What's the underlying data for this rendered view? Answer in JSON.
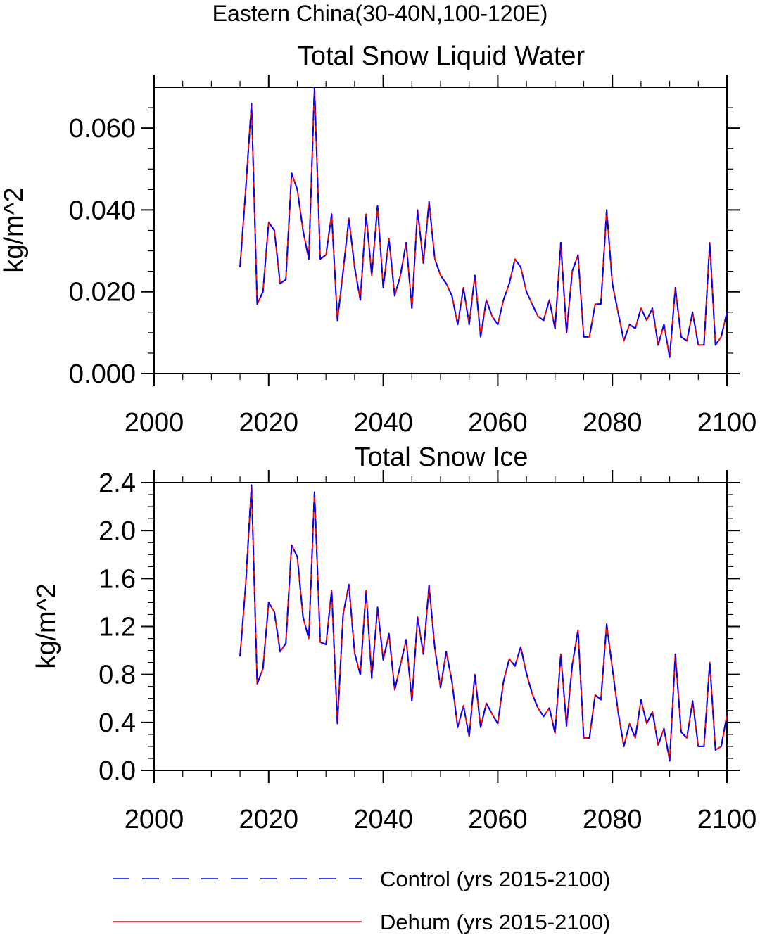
{
  "supertitle": "Eastern China(30-40N,100-120E)",
  "chart_data": [
    {
      "type": "line",
      "title": "Total Snow Liquid Water",
      "ylabel": "kg/m^2",
      "xlabel": "",
      "xlim": [
        2000,
        2100
      ],
      "ylim": [
        0,
        0.07
      ],
      "xticks": [
        2000,
        2020,
        2040,
        2060,
        2080,
        2100
      ],
      "xtick_labels": [
        "2000",
        "2020",
        "2040",
        "2060",
        "2080",
        "2100"
      ],
      "yticks": [
        0,
        0.02,
        0.04,
        0.06
      ],
      "ytick_labels": [
        "0.000",
        "0.020",
        "0.040",
        "0.060"
      ],
      "grid": false,
      "x": [
        2015,
        2016,
        2017,
        2018,
        2019,
        2020,
        2021,
        2022,
        2023,
        2024,
        2025,
        2026,
        2027,
        2028,
        2029,
        2030,
        2031,
        2032,
        2033,
        2034,
        2035,
        2036,
        2037,
        2038,
        2039,
        2040,
        2041,
        2042,
        2043,
        2044,
        2045,
        2046,
        2047,
        2048,
        2049,
        2050,
        2051,
        2052,
        2053,
        2054,
        2055,
        2056,
        2057,
        2058,
        2059,
        2060,
        2061,
        2062,
        2063,
        2064,
        2065,
        2066,
        2067,
        2068,
        2069,
        2070,
        2071,
        2072,
        2073,
        2074,
        2075,
        2076,
        2077,
        2078,
        2079,
        2080,
        2081,
        2082,
        2083,
        2084,
        2085,
        2086,
        2087,
        2088,
        2089,
        2090,
        2091,
        2092,
        2093,
        2094,
        2095,
        2096,
        2097,
        2098,
        2099,
        2100
      ],
      "series": [
        {
          "name": "Control (yrs 2015-2100)",
          "color": "#0000ff",
          "dash": "dashed",
          "values": [
            0.026,
            0.045,
            0.066,
            0.017,
            0.02,
            0.037,
            0.035,
            0.022,
            0.023,
            0.049,
            0.045,
            0.035,
            0.028,
            0.07,
            0.028,
            0.029,
            0.039,
            0.013,
            0.025,
            0.038,
            0.026,
            0.018,
            0.039,
            0.024,
            0.041,
            0.021,
            0.033,
            0.019,
            0.024,
            0.032,
            0.016,
            0.04,
            0.027,
            0.042,
            0.028,
            0.024,
            0.022,
            0.019,
            0.012,
            0.021,
            0.012,
            0.024,
            0.009,
            0.018,
            0.014,
            0.012,
            0.018,
            0.022,
            0.028,
            0.026,
            0.02,
            0.017,
            0.014,
            0.013,
            0.018,
            0.011,
            0.032,
            0.01,
            0.025,
            0.029,
            0.009,
            0.009,
            0.017,
            0.017,
            0.04,
            0.022,
            0.015,
            0.008,
            0.012,
            0.011,
            0.016,
            0.013,
            0.016,
            0.007,
            0.012,
            0.004,
            0.021,
            0.009,
            0.008,
            0.015,
            0.007,
            0.007,
            0.032,
            0.007,
            0.009,
            0.015
          ]
        },
        {
          "name": "Dehum (yrs 2015-2100)",
          "color": "#ff0000",
          "dash": "solid",
          "values": [
            0.026,
            0.045,
            0.066,
            0.017,
            0.02,
            0.037,
            0.035,
            0.022,
            0.023,
            0.049,
            0.045,
            0.035,
            0.028,
            0.07,
            0.028,
            0.029,
            0.039,
            0.013,
            0.025,
            0.038,
            0.026,
            0.018,
            0.039,
            0.024,
            0.041,
            0.021,
            0.033,
            0.019,
            0.024,
            0.032,
            0.016,
            0.04,
            0.027,
            0.042,
            0.028,
            0.024,
            0.022,
            0.019,
            0.012,
            0.021,
            0.012,
            0.024,
            0.009,
            0.018,
            0.014,
            0.012,
            0.018,
            0.022,
            0.028,
            0.026,
            0.02,
            0.017,
            0.014,
            0.013,
            0.018,
            0.011,
            0.032,
            0.01,
            0.025,
            0.029,
            0.009,
            0.009,
            0.017,
            0.017,
            0.04,
            0.022,
            0.015,
            0.008,
            0.012,
            0.011,
            0.016,
            0.013,
            0.016,
            0.007,
            0.012,
            0.004,
            0.021,
            0.009,
            0.008,
            0.015,
            0.007,
            0.007,
            0.032,
            0.007,
            0.009,
            0.015
          ]
        }
      ]
    },
    {
      "type": "line",
      "title": "Total Snow Ice",
      "ylabel": "kg/m^2",
      "xlabel": "",
      "xlim": [
        2000,
        2100
      ],
      "ylim": [
        0,
        2.4
      ],
      "xticks": [
        2000,
        2020,
        2040,
        2060,
        2080,
        2100
      ],
      "xtick_labels": [
        "2000",
        "2020",
        "2040",
        "2060",
        "2080",
        "2100"
      ],
      "yticks": [
        0,
        0.4,
        0.8,
        1.2,
        1.6,
        2.0,
        2.4
      ],
      "ytick_labels": [
        "0.0",
        "0.4",
        "0.8",
        "1.2",
        "1.6",
        "2.0",
        "2.4"
      ],
      "grid": false,
      "x": [
        2015,
        2016,
        2017,
        2018,
        2019,
        2020,
        2021,
        2022,
        2023,
        2024,
        2025,
        2026,
        2027,
        2028,
        2029,
        2030,
        2031,
        2032,
        2033,
        2034,
        2035,
        2036,
        2037,
        2038,
        2039,
        2040,
        2041,
        2042,
        2043,
        2044,
        2045,
        2046,
        2047,
        2048,
        2049,
        2050,
        2051,
        2052,
        2053,
        2054,
        2055,
        2056,
        2057,
        2058,
        2059,
        2060,
        2061,
        2062,
        2063,
        2064,
        2065,
        2066,
        2067,
        2068,
        2069,
        2070,
        2071,
        2072,
        2073,
        2074,
        2075,
        2076,
        2077,
        2078,
        2079,
        2080,
        2081,
        2082,
        2083,
        2084,
        2085,
        2086,
        2087,
        2088,
        2089,
        2090,
        2091,
        2092,
        2093,
        2094,
        2095,
        2096,
        2097,
        2098,
        2099,
        2100
      ],
      "series": [
        {
          "name": "Control (yrs 2015-2100)",
          "color": "#0000ff",
          "dash": "dashed",
          "values": [
            0.95,
            1.55,
            2.38,
            0.72,
            0.85,
            1.4,
            1.32,
            0.99,
            1.06,
            1.88,
            1.78,
            1.28,
            1.1,
            2.32,
            1.07,
            1.05,
            1.5,
            0.39,
            1.3,
            1.55,
            0.98,
            0.8,
            1.5,
            0.77,
            1.36,
            0.92,
            1.14,
            0.67,
            0.88,
            1.09,
            0.58,
            1.28,
            0.97,
            1.54,
            1.02,
            0.69,
            0.99,
            0.74,
            0.36,
            0.54,
            0.28,
            0.8,
            0.36,
            0.56,
            0.47,
            0.39,
            0.74,
            0.93,
            0.87,
            1.03,
            0.81,
            0.64,
            0.52,
            0.45,
            0.52,
            0.31,
            0.97,
            0.37,
            0.88,
            1.17,
            0.27,
            0.27,
            0.63,
            0.59,
            1.22,
            0.85,
            0.49,
            0.2,
            0.39,
            0.27,
            0.59,
            0.39,
            0.49,
            0.21,
            0.35,
            0.08,
            0.97,
            0.32,
            0.27,
            0.58,
            0.2,
            0.2,
            0.9,
            0.17,
            0.2,
            0.46
          ]
        },
        {
          "name": "Dehum (yrs 2015-2100)",
          "color": "#ff0000",
          "dash": "solid",
          "values": [
            0.95,
            1.55,
            2.38,
            0.72,
            0.85,
            1.4,
            1.32,
            0.99,
            1.06,
            1.88,
            1.78,
            1.28,
            1.1,
            2.32,
            1.07,
            1.05,
            1.5,
            0.39,
            1.3,
            1.55,
            0.98,
            0.8,
            1.5,
            0.77,
            1.36,
            0.92,
            1.14,
            0.67,
            0.88,
            1.09,
            0.58,
            1.28,
            0.97,
            1.54,
            1.02,
            0.69,
            0.99,
            0.74,
            0.36,
            0.54,
            0.28,
            0.8,
            0.36,
            0.56,
            0.47,
            0.39,
            0.74,
            0.93,
            0.87,
            1.03,
            0.81,
            0.64,
            0.52,
            0.45,
            0.52,
            0.31,
            0.97,
            0.37,
            0.88,
            1.17,
            0.27,
            0.27,
            0.63,
            0.59,
            1.22,
            0.85,
            0.49,
            0.2,
            0.39,
            0.27,
            0.59,
            0.39,
            0.49,
            0.21,
            0.35,
            0.08,
            0.97,
            0.32,
            0.27,
            0.58,
            0.2,
            0.2,
            0.9,
            0.17,
            0.2,
            0.46
          ]
        }
      ]
    }
  ],
  "legend": {
    "placement": "bottom",
    "items": [
      {
        "label": "Control (yrs 2015-2100)",
        "color": "#0000ff",
        "dash": "dashed"
      },
      {
        "label": "Dehum (yrs 2015-2100)",
        "color": "#ff0000",
        "dash": "solid"
      }
    ]
  }
}
